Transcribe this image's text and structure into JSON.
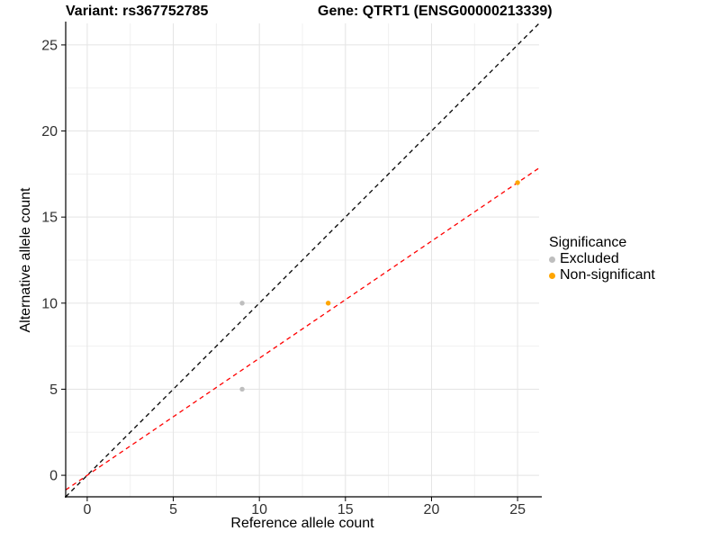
{
  "titles": {
    "variant": "Variant: rs367752785",
    "gene": "Gene: QTRT1 (ENSG00000213339)"
  },
  "chart_data": {
    "type": "scatter",
    "xlabel": "Reference allele count",
    "ylabel": "Alternative allele count",
    "xlim": [
      -1.25,
      26.25
    ],
    "ylim": [
      -1.25,
      26.25
    ],
    "x_ticks": [
      0,
      5,
      10,
      15,
      20,
      25
    ],
    "y_ticks": [
      0,
      5,
      10,
      15,
      20,
      25
    ],
    "x_minor": [
      2.5,
      7.5,
      12.5,
      17.5,
      22.5
    ],
    "y_minor": [
      2.5,
      7.5,
      12.5,
      17.5,
      22.5
    ],
    "grid": "major and minor, light gray on white",
    "colors": {
      "major_grid": "#e4e4e4",
      "minor_grid": "#f0f0f0",
      "axis_line": "#000000",
      "tick_label": "#303030",
      "identity_line": "#000000",
      "fit_line": "#ff0000"
    },
    "series": [
      {
        "name": "Excluded",
        "color": "#bebebe",
        "points": [
          [
            9,
            10
          ],
          [
            9,
            5
          ]
        ]
      },
      {
        "name": "Non-significant",
        "color": "#ffa500",
        "points": [
          [
            14,
            10
          ],
          [
            25,
            17
          ]
        ]
      }
    ],
    "lines": [
      {
        "name": "identity-line",
        "color": "#000000",
        "dashed": true,
        "x1": -1.25,
        "y1": -1.25,
        "x2": 26.25,
        "y2": 26.25
      },
      {
        "name": "fit-line",
        "color": "#ff0000",
        "dashed": true,
        "x1": -1.25,
        "y1": -0.85,
        "x2": 26.25,
        "y2": 17.85
      }
    ],
    "legend": {
      "title": "Significance",
      "position": "right",
      "items": [
        {
          "label": "Excluded",
          "color": "#bebebe"
        },
        {
          "label": "Non-significant",
          "color": "#ffa500"
        }
      ]
    }
  }
}
